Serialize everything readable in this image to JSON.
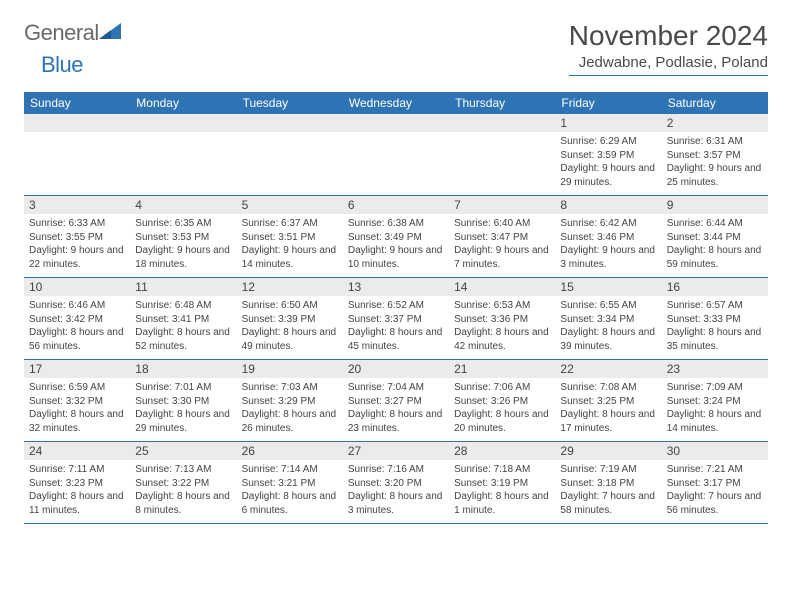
{
  "logo": {
    "word1": "General",
    "word2": "Blue"
  },
  "title": "November 2024",
  "location": "Jedwabne, Podlasie, Poland",
  "day_names": [
    "Sunday",
    "Monday",
    "Tuesday",
    "Wednesday",
    "Thursday",
    "Friday",
    "Saturday"
  ],
  "colors": {
    "accent": "#2e74b5",
    "header_text": "#ffffff",
    "day_bg": "#eceaea",
    "text": "#444444",
    "logo_gray": "#6a6a6a"
  },
  "weeks": [
    [
      {
        "num": "",
        "sunrise": "",
        "sunset": "",
        "daylight": ""
      },
      {
        "num": "",
        "sunrise": "",
        "sunset": "",
        "daylight": ""
      },
      {
        "num": "",
        "sunrise": "",
        "sunset": "",
        "daylight": ""
      },
      {
        "num": "",
        "sunrise": "",
        "sunset": "",
        "daylight": ""
      },
      {
        "num": "",
        "sunrise": "",
        "sunset": "",
        "daylight": ""
      },
      {
        "num": "1",
        "sunrise": "Sunrise: 6:29 AM",
        "sunset": "Sunset: 3:59 PM",
        "daylight": "Daylight: 9 hours and 29 minutes."
      },
      {
        "num": "2",
        "sunrise": "Sunrise: 6:31 AM",
        "sunset": "Sunset: 3:57 PM",
        "daylight": "Daylight: 9 hours and 25 minutes."
      }
    ],
    [
      {
        "num": "3",
        "sunrise": "Sunrise: 6:33 AM",
        "sunset": "Sunset: 3:55 PM",
        "daylight": "Daylight: 9 hours and 22 minutes."
      },
      {
        "num": "4",
        "sunrise": "Sunrise: 6:35 AM",
        "sunset": "Sunset: 3:53 PM",
        "daylight": "Daylight: 9 hours and 18 minutes."
      },
      {
        "num": "5",
        "sunrise": "Sunrise: 6:37 AM",
        "sunset": "Sunset: 3:51 PM",
        "daylight": "Daylight: 9 hours and 14 minutes."
      },
      {
        "num": "6",
        "sunrise": "Sunrise: 6:38 AM",
        "sunset": "Sunset: 3:49 PM",
        "daylight": "Daylight: 9 hours and 10 minutes."
      },
      {
        "num": "7",
        "sunrise": "Sunrise: 6:40 AM",
        "sunset": "Sunset: 3:47 PM",
        "daylight": "Daylight: 9 hours and 7 minutes."
      },
      {
        "num": "8",
        "sunrise": "Sunrise: 6:42 AM",
        "sunset": "Sunset: 3:46 PM",
        "daylight": "Daylight: 9 hours and 3 minutes."
      },
      {
        "num": "9",
        "sunrise": "Sunrise: 6:44 AM",
        "sunset": "Sunset: 3:44 PM",
        "daylight": "Daylight: 8 hours and 59 minutes."
      }
    ],
    [
      {
        "num": "10",
        "sunrise": "Sunrise: 6:46 AM",
        "sunset": "Sunset: 3:42 PM",
        "daylight": "Daylight: 8 hours and 56 minutes."
      },
      {
        "num": "11",
        "sunrise": "Sunrise: 6:48 AM",
        "sunset": "Sunset: 3:41 PM",
        "daylight": "Daylight: 8 hours and 52 minutes."
      },
      {
        "num": "12",
        "sunrise": "Sunrise: 6:50 AM",
        "sunset": "Sunset: 3:39 PM",
        "daylight": "Daylight: 8 hours and 49 minutes."
      },
      {
        "num": "13",
        "sunrise": "Sunrise: 6:52 AM",
        "sunset": "Sunset: 3:37 PM",
        "daylight": "Daylight: 8 hours and 45 minutes."
      },
      {
        "num": "14",
        "sunrise": "Sunrise: 6:53 AM",
        "sunset": "Sunset: 3:36 PM",
        "daylight": "Daylight: 8 hours and 42 minutes."
      },
      {
        "num": "15",
        "sunrise": "Sunrise: 6:55 AM",
        "sunset": "Sunset: 3:34 PM",
        "daylight": "Daylight: 8 hours and 39 minutes."
      },
      {
        "num": "16",
        "sunrise": "Sunrise: 6:57 AM",
        "sunset": "Sunset: 3:33 PM",
        "daylight": "Daylight: 8 hours and 35 minutes."
      }
    ],
    [
      {
        "num": "17",
        "sunrise": "Sunrise: 6:59 AM",
        "sunset": "Sunset: 3:32 PM",
        "daylight": "Daylight: 8 hours and 32 minutes."
      },
      {
        "num": "18",
        "sunrise": "Sunrise: 7:01 AM",
        "sunset": "Sunset: 3:30 PM",
        "daylight": "Daylight: 8 hours and 29 minutes."
      },
      {
        "num": "19",
        "sunrise": "Sunrise: 7:03 AM",
        "sunset": "Sunset: 3:29 PM",
        "daylight": "Daylight: 8 hours and 26 minutes."
      },
      {
        "num": "20",
        "sunrise": "Sunrise: 7:04 AM",
        "sunset": "Sunset: 3:27 PM",
        "daylight": "Daylight: 8 hours and 23 minutes."
      },
      {
        "num": "21",
        "sunrise": "Sunrise: 7:06 AM",
        "sunset": "Sunset: 3:26 PM",
        "daylight": "Daylight: 8 hours and 20 minutes."
      },
      {
        "num": "22",
        "sunrise": "Sunrise: 7:08 AM",
        "sunset": "Sunset: 3:25 PM",
        "daylight": "Daylight: 8 hours and 17 minutes."
      },
      {
        "num": "23",
        "sunrise": "Sunrise: 7:09 AM",
        "sunset": "Sunset: 3:24 PM",
        "daylight": "Daylight: 8 hours and 14 minutes."
      }
    ],
    [
      {
        "num": "24",
        "sunrise": "Sunrise: 7:11 AM",
        "sunset": "Sunset: 3:23 PM",
        "daylight": "Daylight: 8 hours and 11 minutes."
      },
      {
        "num": "25",
        "sunrise": "Sunrise: 7:13 AM",
        "sunset": "Sunset: 3:22 PM",
        "daylight": "Daylight: 8 hours and 8 minutes."
      },
      {
        "num": "26",
        "sunrise": "Sunrise: 7:14 AM",
        "sunset": "Sunset: 3:21 PM",
        "daylight": "Daylight: 8 hours and 6 minutes."
      },
      {
        "num": "27",
        "sunrise": "Sunrise: 7:16 AM",
        "sunset": "Sunset: 3:20 PM",
        "daylight": "Daylight: 8 hours and 3 minutes."
      },
      {
        "num": "28",
        "sunrise": "Sunrise: 7:18 AM",
        "sunset": "Sunset: 3:19 PM",
        "daylight": "Daylight: 8 hours and 1 minute."
      },
      {
        "num": "29",
        "sunrise": "Sunrise: 7:19 AM",
        "sunset": "Sunset: 3:18 PM",
        "daylight": "Daylight: 7 hours and 58 minutes."
      },
      {
        "num": "30",
        "sunrise": "Sunrise: 7:21 AM",
        "sunset": "Sunset: 3:17 PM",
        "daylight": "Daylight: 7 hours and 56 minutes."
      }
    ]
  ]
}
